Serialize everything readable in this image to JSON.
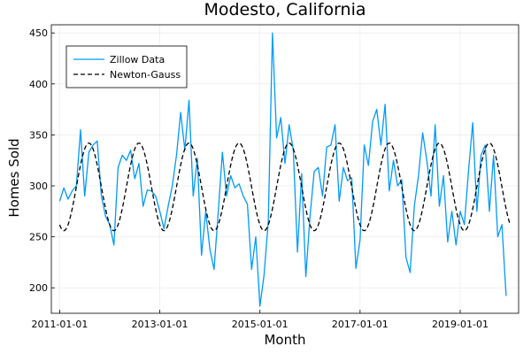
{
  "chart_data": {
    "type": "line",
    "title": "Modesto, California",
    "xlabel": "Month",
    "ylabel": "Homes Sold",
    "x_ticks": [
      "2011-01-01",
      "2013-01-01",
      "2015-01-01",
      "2017-01-01",
      "2019-01-01"
    ],
    "y_ticks": [
      200,
      250,
      300,
      350,
      400,
      450
    ],
    "xlim": [
      "2010-11-01",
      "2020-03-01"
    ],
    "ylim": [
      175,
      458
    ],
    "grid": true,
    "legend_position": "top-left",
    "colors": {
      "zillow": "#009AFA",
      "newton": "#000000"
    },
    "series": [
      {
        "name": "Zillow Data",
        "style": "solid",
        "start": "2011-01-01",
        "values": [
          285,
          298,
          287,
          295,
          300,
          355,
          290,
          333,
          340,
          344,
          290,
          270,
          262,
          242,
          318,
          330,
          325,
          335,
          307,
          322,
          280,
          296,
          295,
          290,
          275,
          258,
          280,
          300,
          330,
          372,
          335,
          384,
          290,
          327,
          232,
          275,
          238,
          218,
          274,
          333,
          290,
          310,
          298,
          302,
          290,
          282,
          218,
          250,
          182,
          213,
          265,
          450,
          347,
          367,
          322,
          360,
          335,
          235,
          312,
          211,
          270,
          314,
          318,
          290,
          338,
          340,
          360,
          285,
          318,
          305,
          308,
          219,
          247,
          340,
          320,
          363,
          375,
          340,
          380,
          295,
          325,
          300,
          306,
          230,
          215,
          280,
          310,
          352,
          325,
          290,
          360,
          280,
          310,
          245,
          275,
          242,
          275,
          262,
          315,
          362,
          275,
          330,
          340,
          275,
          330,
          250,
          262,
          192
        ]
      },
      {
        "name": "Newton-Gauss",
        "style": "dashed",
        "start": "2011-01-01",
        "model": "sinusoid",
        "mean": 299,
        "amplitude": 43,
        "period_months": 12,
        "peak_month": 7,
        "count": 108
      }
    ]
  }
}
